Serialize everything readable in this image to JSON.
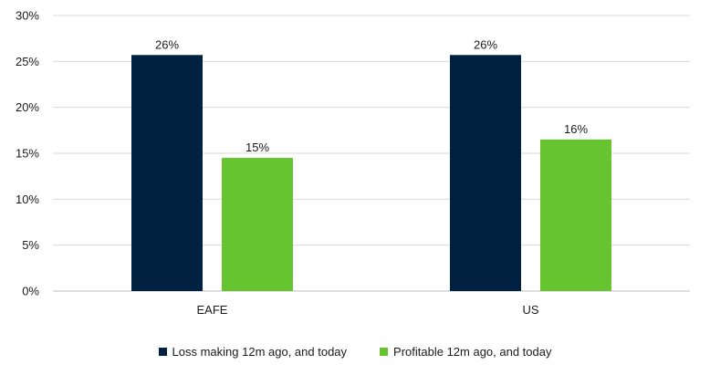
{
  "chart_data": {
    "type": "bar",
    "categories": [
      "EAFE",
      "US"
    ],
    "series": [
      {
        "name": "Loss making 12m ago, and today",
        "values": [
          25.7,
          25.7
        ],
        "labels": [
          "26%",
          "26%"
        ],
        "color": "#00213f"
      },
      {
        "name": "Profitable 12m ago, and today",
        "values": [
          14.5,
          16.5
        ],
        "labels": [
          "15%",
          "16%"
        ],
        "color": "#66c430"
      }
    ],
    "ylim": [
      0,
      30
    ],
    "yticks": [
      0,
      5,
      10,
      15,
      20,
      25,
      30
    ],
    "ytick_labels": [
      "0%",
      "5%",
      "10%",
      "15%",
      "20%",
      "25%",
      "30%"
    ],
    "grid": true,
    "legend_position": "bottom"
  }
}
